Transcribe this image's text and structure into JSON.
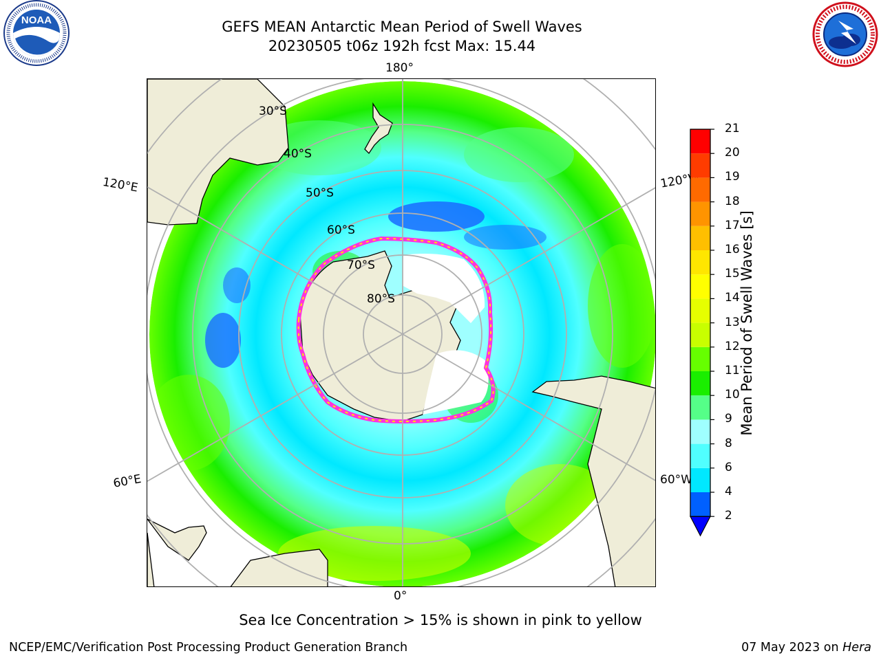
{
  "title": {
    "line1": "GEFS MEAN Antarctic Mean Period of Swell Waves",
    "line2": "20230505 t06z 192h fcst   Max: 15.44"
  },
  "logos": {
    "noaa": {
      "text": "NOAA",
      "ring_text": "NATIONAL OCEANIC AND ATMOSPHERIC ADMINISTRATION · U.S. DEPARTMENT OF COMMERCE"
    },
    "nws": {
      "ring_text": "NATIONAL WEATHER SERVICE"
    }
  },
  "map": {
    "projection": "south-polar-stereographic",
    "longitude_labels": {
      "top": "180°",
      "bottom": "0°",
      "left_upper": "120°E",
      "left_lower": "60°E",
      "right_upper": "120°W",
      "right_lower": "60°W"
    },
    "latitude_labels": [
      "30°S",
      "40°S",
      "50°S",
      "60°S",
      "70°S",
      "80°S"
    ]
  },
  "colorbar": {
    "label": "Mean Period of Swell Waves [s]",
    "ticks": [
      "2",
      "4",
      "6",
      "8",
      "9",
      "10",
      "11",
      "12",
      "13",
      "14",
      "15",
      "16",
      "17",
      "18",
      "19",
      "20",
      "21"
    ],
    "colors": [
      "#0060ff",
      "#00e8ff",
      "#50ffff",
      "#9fffff",
      "#55ff88",
      "#1aee00",
      "#66ff00",
      "#c8ff00",
      "#e6ff00",
      "#ffff00",
      "#ffe600",
      "#ffbf00",
      "#ff9400",
      "#ff6a00",
      "#ff3c00",
      "#ff0000"
    ],
    "extend_color": "#0000ff"
  },
  "footnote": "Sea Ice Concentration > 15% is shown in pink to yellow",
  "credits": {
    "left": "NCEP/EMC/Verification Post Processing Product Generation Branch",
    "right_date": "07 May 2023 on ",
    "right_machine": "Hera"
  }
}
